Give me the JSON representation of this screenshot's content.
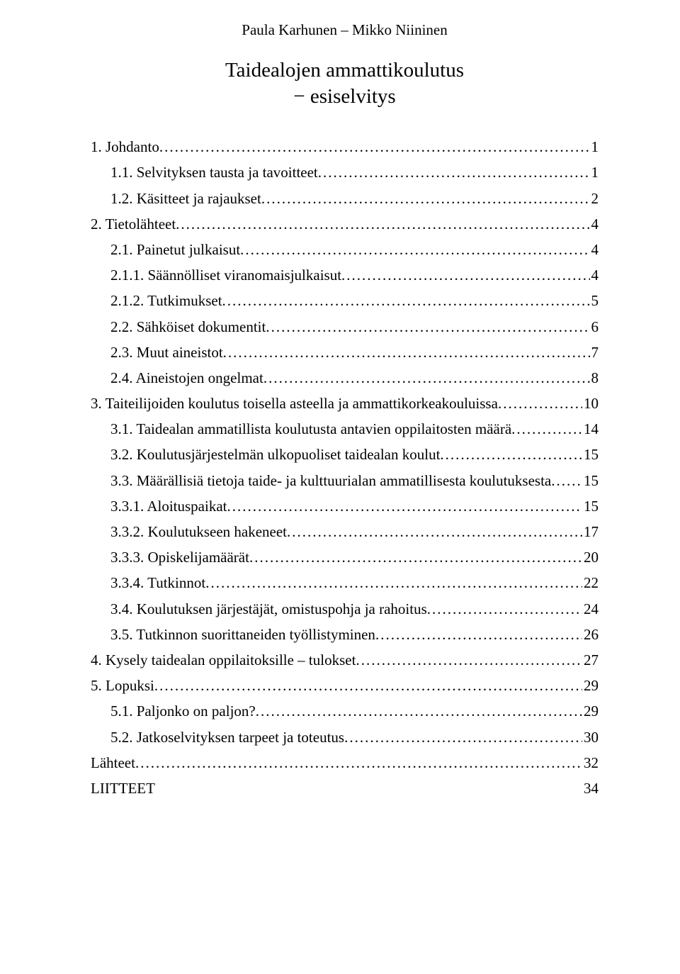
{
  "authors": "Paula Karhunen – Mikko Niininen",
  "title_line1": "Taidealojen ammattikoulutus",
  "title_line2": "− esiselvitys",
  "toc": [
    {
      "label": "1.   Johdanto",
      "page": "1",
      "indent": 0
    },
    {
      "label": "1.1. Selvityksen tausta ja tavoitteet",
      "page": "1",
      "indent": 1
    },
    {
      "label": "1.2. Käsitteet ja rajaukset",
      "page": "2",
      "indent": 1
    },
    {
      "label": "2. Tietolähteet",
      "page": "4",
      "indent": 0
    },
    {
      "label": "2.1. Painetut julkaisut",
      "page": "4",
      "indent": 1
    },
    {
      "label": "2.1.1. Säännölliset viranomaisjulkaisut",
      "page": "4",
      "indent": 1
    },
    {
      "label": "2.1.2. Tutkimukset",
      "page": "5",
      "indent": 1
    },
    {
      "label": "2.2. Sähköiset dokumentit",
      "page": "6",
      "indent": 1
    },
    {
      "label": "2.3. Muut aineistot",
      "page": "7",
      "indent": 1
    },
    {
      "label": "2.4. Aineistojen ongelmat",
      "page": "8",
      "indent": 1
    },
    {
      "label": "3. Taiteilijoiden koulutus toisella asteella ja ammattikorkeakouluissa",
      "page": "10",
      "indent": 0
    },
    {
      "label": "3.1. Taidealan ammatillista koulutusta antavien oppilaitosten määrä",
      "page": "14",
      "indent": 1
    },
    {
      "label": "3.2. Koulutusjärjestelmän ulkopuoliset taidealan koulut",
      "page": "15",
      "indent": 1
    },
    {
      "label": "3.3. Määrällisiä tietoja taide- ja kulttuurialan ammatillisesta koulutuksesta",
      "page": "15",
      "indent": 1
    },
    {
      "label": "3.3.1. Aloituspaikat",
      "page": "15",
      "indent": 2
    },
    {
      "label": "3.3.2. Koulutukseen hakeneet",
      "page": "17",
      "indent": 2
    },
    {
      "label": "3.3.3. Opiskelijamäärät",
      "page": "20",
      "indent": 2
    },
    {
      "label": "3.3.4. Tutkinnot",
      "page": "22",
      "indent": 2
    },
    {
      "label": "3.4. Koulutuksen järjestäjät, omistuspohja ja rahoitus",
      "page": "24",
      "indent": 1
    },
    {
      "label": "3.5. Tutkinnon suorittaneiden työllistyminen",
      "page": "26",
      "indent": 1
    },
    {
      "label": "4. Kysely taidealan oppilaitoksille – tulokset",
      "page": "27",
      "indent": 0
    },
    {
      "label": "5.  Lopuksi",
      "page": "29",
      "indent": 0
    },
    {
      "label": "5.1. Paljonko on paljon?",
      "page": "29",
      "indent": 1
    },
    {
      "label": "5.2. Jatkoselvityksen tarpeet ja toteutus",
      "page": "30",
      "indent": 1
    },
    {
      "label": "Lähteet",
      "page": "32",
      "indent": 0
    },
    {
      "label": "LIITTEET",
      "page": "34",
      "indent": 0,
      "nodots": true
    }
  ]
}
